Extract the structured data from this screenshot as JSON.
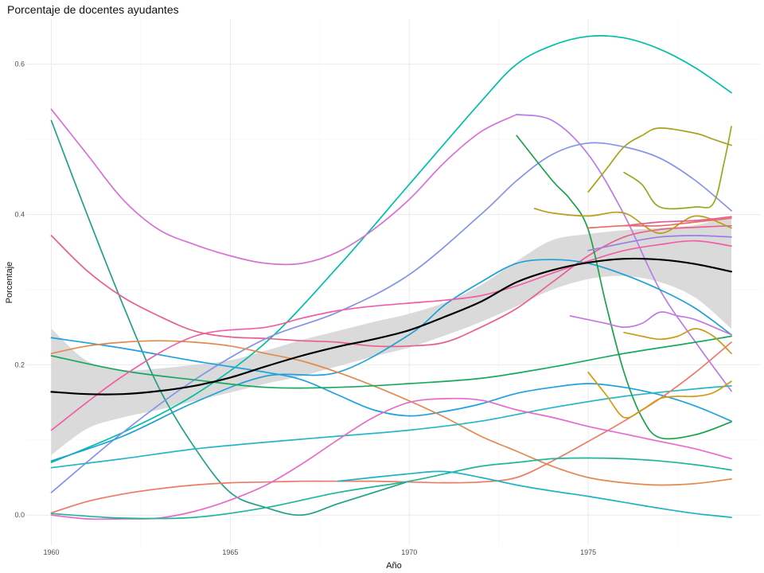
{
  "chart_data": {
    "type": "line",
    "title": "Porcentaje de docentes ayudantes",
    "xlabel": "Año",
    "ylabel": "Porcentaje",
    "xlim": [
      1959.3,
      1979.8
    ],
    "ylim": [
      -0.04,
      0.66
    ],
    "x_ticks": [
      1960,
      1965,
      1970,
      1975
    ],
    "y_ticks": [
      0.0,
      0.2,
      0.4,
      0.6
    ],
    "y_tick_labels": [
      "0.0",
      "0.2",
      "0.4",
      "0.6"
    ],
    "grid": true,
    "legend": "none",
    "smooth_band": {
      "color": "#d3d3d3",
      "x": [
        1960,
        1961,
        1962,
        1963,
        1964,
        1965,
        1966,
        1967,
        1968,
        1969,
        1970,
        1971,
        1972,
        1973,
        1974,
        1975,
        1976,
        1977,
        1978,
        1979
      ],
      "lower": [
        0.08,
        0.115,
        0.13,
        0.14,
        0.152,
        0.163,
        0.175,
        0.185,
        0.198,
        0.211,
        0.223,
        0.239,
        0.257,
        0.278,
        0.3,
        0.314,
        0.318,
        0.31,
        0.289,
        0.248
      ],
      "upper": [
        0.248,
        0.205,
        0.193,
        0.195,
        0.2,
        0.206,
        0.219,
        0.233,
        0.245,
        0.257,
        0.268,
        0.283,
        0.306,
        0.338,
        0.366,
        0.374,
        0.379,
        0.382,
        0.386,
        0.398
      ]
    },
    "series": [
      {
        "color": "#000000",
        "width": 2.2,
        "x": [
          1960,
          1961,
          1962,
          1963,
          1964,
          1965,
          1966,
          1967,
          1968,
          1969,
          1970,
          1971,
          1972,
          1973,
          1974,
          1975,
          1976,
          1977,
          1978,
          1979
        ],
        "values": [
          0.164,
          0.161,
          0.161,
          0.165,
          0.172,
          0.183,
          0.198,
          0.212,
          0.224,
          0.234,
          0.246,
          0.264,
          0.284,
          0.31,
          0.326,
          0.336,
          0.341,
          0.34,
          0.334,
          0.324
        ]
      },
      {
        "color": "#00BFA5",
        "x": [
          1960,
          1962,
          1964,
          1966,
          1968,
          1970,
          1972,
          1973,
          1974,
          1975,
          1976,
          1977,
          1978,
          1979
        ],
        "values": [
          0.07,
          0.11,
          0.16,
          0.23,
          0.33,
          0.44,
          0.55,
          0.6,
          0.625,
          0.637,
          0.635,
          0.62,
          0.595,
          0.562
        ]
      },
      {
        "color": "#1FA187",
        "x": [
          1960,
          1961,
          1962,
          1963,
          1964,
          1965,
          1966,
          1967,
          1968,
          1969,
          1970
        ],
        "values": [
          0.525,
          0.4,
          0.28,
          0.17,
          0.09,
          0.03,
          0.01,
          0.0,
          0.015,
          0.03,
          0.045
        ]
      },
      {
        "color": "#DA70D6",
        "x": [
          1960,
          1961,
          1962,
          1963,
          1964,
          1965,
          1966,
          1967,
          1968,
          1969,
          1970,
          1971,
          1972,
          1973
        ],
        "values": [
          0.54,
          0.48,
          0.42,
          0.38,
          0.36,
          0.345,
          0.335,
          0.335,
          0.35,
          0.38,
          0.42,
          0.47,
          0.51,
          0.533
        ]
      },
      {
        "color": "#B77BEB",
        "x": [
          1973,
          1974,
          1975,
          1976,
          1977,
          1978,
          1979
        ],
        "values": [
          0.533,
          0.525,
          0.48,
          0.4,
          0.3,
          0.23,
          0.165
        ]
      },
      {
        "color": "#E8618C",
        "x": [
          1960,
          1961,
          1962,
          1963,
          1964,
          1965,
          1966,
          1967,
          1968,
          1969,
          1970,
          1971,
          1972,
          1973,
          1974,
          1975,
          1976,
          1977,
          1978,
          1979
        ],
        "values": [
          0.372,
          0.325,
          0.29,
          0.265,
          0.245,
          0.237,
          0.235,
          0.232,
          0.23,
          0.225,
          0.225,
          0.23,
          0.25,
          0.275,
          0.31,
          0.345,
          0.37,
          0.38,
          0.383,
          0.385
        ]
      },
      {
        "color": "#8494E8",
        "x": [
          1960,
          1962,
          1964,
          1966,
          1968,
          1970,
          1972,
          1973,
          1974,
          1975,
          1976,
          1977,
          1978,
          1979
        ],
        "values": [
          0.03,
          0.11,
          0.18,
          0.235,
          0.27,
          0.32,
          0.4,
          0.445,
          0.48,
          0.495,
          0.49,
          0.475,
          0.445,
          0.405
        ]
      },
      {
        "color": "#1DA1E0",
        "x": [
          1960,
          1962,
          1964,
          1966,
          1967,
          1968,
          1969,
          1970,
          1971,
          1972,
          1973,
          1974,
          1975,
          1976,
          1977,
          1978,
          1979
        ],
        "values": [
          0.236,
          0.222,
          0.205,
          0.19,
          0.18,
          0.16,
          0.14,
          0.132,
          0.138,
          0.148,
          0.162,
          0.17,
          0.175,
          0.17,
          0.16,
          0.145,
          0.125
        ]
      },
      {
        "color": "#1FA1D8",
        "x": [
          1960,
          1962,
          1964,
          1966,
          1968,
          1970,
          1971,
          1972,
          1973,
          1974,
          1975,
          1976,
          1977,
          1978,
          1979
        ],
        "values": [
          0.072,
          0.105,
          0.15,
          0.185,
          0.19,
          0.24,
          0.28,
          0.31,
          0.335,
          0.34,
          0.335,
          0.32,
          0.3,
          0.275,
          0.24
        ]
      },
      {
        "color": "#E38A4E",
        "x": [
          1960,
          1961,
          1962,
          1963,
          1964,
          1965,
          1966,
          1967,
          1968,
          1969,
          1970,
          1971,
          1972,
          1973,
          1974,
          1975,
          1976,
          1977,
          1978,
          1979
        ],
        "values": [
          0.215,
          0.225,
          0.23,
          0.232,
          0.23,
          0.225,
          0.215,
          0.205,
          0.19,
          0.172,
          0.152,
          0.13,
          0.105,
          0.085,
          0.065,
          0.05,
          0.043,
          0.04,
          0.042,
          0.048
        ]
      },
      {
        "color": "#18A862",
        "x": [
          1960,
          1962,
          1964,
          1966,
          1968,
          1970,
          1972,
          1974,
          1976,
          1978,
          1979
        ],
        "values": [
          0.212,
          0.192,
          0.18,
          0.17,
          0.17,
          0.175,
          0.182,
          0.197,
          0.215,
          0.23,
          0.238
        ]
      },
      {
        "color": "#26B6C9",
        "x": [
          1960,
          1962,
          1964,
          1966,
          1968,
          1970,
          1972,
          1974,
          1976,
          1978,
          1979
        ],
        "values": [
          0.063,
          0.075,
          0.088,
          0.097,
          0.105,
          0.113,
          0.125,
          0.143,
          0.158,
          0.168,
          0.172
        ]
      },
      {
        "color": "#EE7A64",
        "x": [
          1960,
          1961,
          1962,
          1963,
          1964,
          1965,
          1966,
          1967,
          1968,
          1969,
          1970,
          1971,
          1972,
          1973,
          1974,
          1975,
          1976,
          1977,
          1978,
          1979
        ],
        "values": [
          0.003,
          0.018,
          0.028,
          0.035,
          0.04,
          0.043,
          0.044,
          0.045,
          0.045,
          0.045,
          0.044,
          0.043,
          0.044,
          0.05,
          0.072,
          0.098,
          0.125,
          0.155,
          0.19,
          0.23
        ]
      },
      {
        "color": "#E76BC9",
        "x": [
          1960,
          1961,
          1962,
          1963,
          1964,
          1965,
          1966,
          1967,
          1968,
          1969,
          1970,
          1971,
          1972,
          1973,
          1974,
          1975,
          1976,
          1977,
          1978,
          1979
        ],
        "values": [
          0.0,
          -0.005,
          -0.005,
          -0.004,
          0.005,
          0.02,
          0.04,
          0.068,
          0.1,
          0.13,
          0.15,
          0.155,
          0.153,
          0.14,
          0.13,
          0.118,
          0.108,
          0.098,
          0.088,
          0.075
        ]
      },
      {
        "color": "#F25EA6",
        "x": [
          1960,
          1962,
          1964,
          1966,
          1967,
          1968,
          1969,
          1970,
          1971,
          1972,
          1973,
          1974,
          1975,
          1976,
          1977,
          1978,
          1979
        ],
        "values": [
          0.113,
          0.185,
          0.238,
          0.25,
          0.262,
          0.272,
          0.278,
          0.282,
          0.286,
          0.292,
          0.305,
          0.322,
          0.338,
          0.352,
          0.36,
          0.365,
          0.358
        ]
      },
      {
        "color": "#21B59A",
        "x": [
          1960,
          1962,
          1964,
          1966,
          1968,
          1970,
          1971,
          1972,
          1973,
          1974,
          1975,
          1976,
          1977,
          1978,
          1979
        ],
        "values": [
          0.002,
          -0.004,
          -0.003,
          0.01,
          0.03,
          0.045,
          0.055,
          0.065,
          0.07,
          0.075,
          0.076,
          0.075,
          0.072,
          0.067,
          0.06
        ]
      },
      {
        "color": "#1EB3C2",
        "x": [
          1968,
          1970,
          1971,
          1972,
          1973,
          1974,
          1975,
          1976,
          1977,
          1978,
          1979
        ],
        "values": [
          0.045,
          0.055,
          0.058,
          0.05,
          0.04,
          0.032,
          0.025,
          0.017,
          0.009,
          0.002,
          -0.003
        ]
      },
      {
        "color": "#18A34A",
        "x": [
          1973,
          1974,
          1974.5,
          1975,
          1975.5,
          1976,
          1976.5,
          1977,
          1978,
          1979
        ],
        "values": [
          0.505,
          0.445,
          0.42,
          0.38,
          0.28,
          0.19,
          0.13,
          0.103,
          0.107,
          0.124
        ]
      },
      {
        "color": "#A9A21C",
        "x": [
          1975,
          1975.5,
          1976,
          1976.5,
          1977,
          1978,
          1978.5,
          1979
        ],
        "values": [
          0.43,
          0.46,
          0.49,
          0.505,
          0.515,
          0.508,
          0.5,
          0.492
        ]
      },
      {
        "color": "#95A820",
        "x": [
          1976,
          1976.5,
          1977,
          1978,
          1978.5,
          1978.8,
          1979
        ],
        "values": [
          0.456,
          0.44,
          0.41,
          0.41,
          0.415,
          0.47,
          0.517
        ]
      },
      {
        "color": "#B8A01A",
        "x": [
          1973.5,
          1974,
          1975,
          1976,
          1977,
          1978,
          1979
        ],
        "values": [
          0.408,
          0.402,
          0.398,
          0.402,
          0.375,
          0.398,
          0.382
        ]
      },
      {
        "color": "#CC9A1A",
        "x": [
          1976,
          1976.5,
          1977,
          1977.5,
          1978,
          1978.5,
          1979
        ],
        "values": [
          0.243,
          0.238,
          0.234,
          0.238,
          0.248,
          0.238,
          0.215
        ]
      },
      {
        "color": "#D69A14",
        "x": [
          1975,
          1975.5,
          1976,
          1976.5,
          1977,
          1977.5,
          1978,
          1978.5,
          1979
        ],
        "values": [
          0.19,
          0.16,
          0.13,
          0.14,
          0.155,
          0.158,
          0.158,
          0.163,
          0.178
        ]
      },
      {
        "color": "#C278E0",
        "x": [
          1974.5,
          1975,
          1975.5,
          1976,
          1976.5,
          1977,
          1977.5,
          1978,
          1979
        ],
        "values": [
          0.265,
          0.26,
          0.255,
          0.25,
          0.255,
          0.27,
          0.265,
          0.26,
          0.24
        ]
      },
      {
        "color": "#9E7CE6",
        "x": [
          1975,
          1976,
          1977,
          1978,
          1979
        ],
        "values": [
          0.352,
          0.362,
          0.37,
          0.372,
          0.37
        ]
      },
      {
        "color": "#E35C9A",
        "x": [
          1976,
          1977,
          1978,
          1979
        ],
        "values": [
          0.385,
          0.39,
          0.392,
          0.397
        ]
      },
      {
        "color": "#EE6B57",
        "x": [
          1975,
          1976,
          1977,
          1978,
          1979
        ],
        "values": [
          0.382,
          0.385,
          0.385,
          0.39,
          0.395
        ]
      }
    ]
  }
}
